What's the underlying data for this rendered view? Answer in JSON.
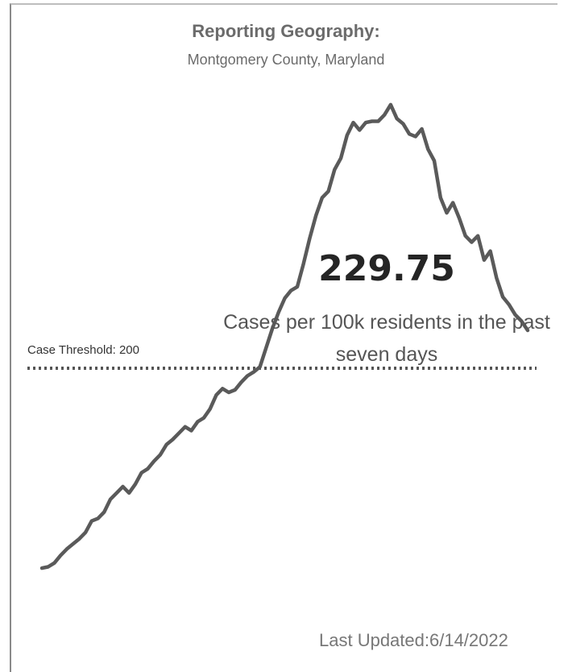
{
  "chart_data": {
    "type": "line",
    "title": "Reporting Geography:",
    "subtitle": "Montgomery County, Maryland",
    "kpi_value": "229.75",
    "kpi_label": "Cases per 100k residents in the past seven days",
    "threshold": {
      "value": 200,
      "label": "Case Threshold: 200"
    },
    "last_updated": "Last Updated:6/14/2022",
    "color": "#5a5a5a",
    "ylim": [
      0,
      450
    ],
    "values": [
      43,
      44,
      47,
      53,
      58,
      62,
      66,
      71,
      80,
      82,
      87,
      97,
      102,
      107,
      102,
      109,
      118,
      121,
      127,
      132,
      140,
      144,
      149,
      154,
      151,
      158,
      161,
      168,
      179,
      184,
      181,
      183,
      189,
      194,
      197,
      201,
      216,
      231,
      244,
      255,
      261,
      264,
      282,
      302,
      320,
      334,
      339,
      356,
      365,
      383,
      393,
      387,
      393,
      394,
      394,
      399,
      407,
      396,
      392,
      384,
      382,
      388,
      372,
      363,
      334,
      322,
      330,
      318,
      304,
      299,
      304,
      285,
      292,
      271,
      256,
      250,
      242,
      237,
      229.75
    ]
  }
}
